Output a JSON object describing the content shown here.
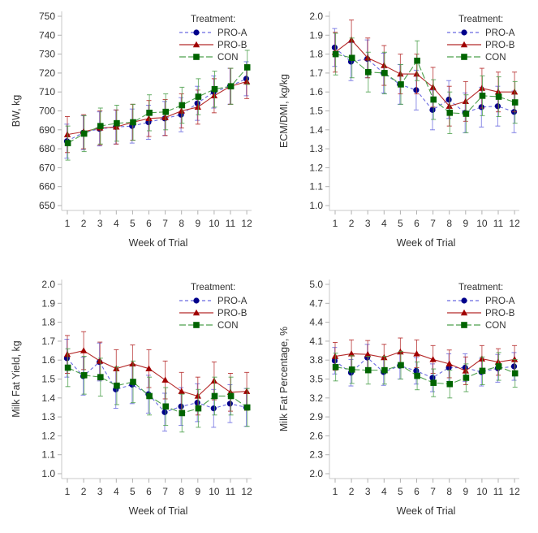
{
  "legend": {
    "title": "Treatment:",
    "entries": [
      {
        "name": "PRO-A",
        "color": "#00008B",
        "line_color": "#6B6BE0",
        "marker": "circle",
        "dash": "dashed"
      },
      {
        "name": "PRO-B",
        "color": "#A00000",
        "line_color": "#B52A2A",
        "marker": "triangle",
        "dash": "solid"
      },
      {
        "name": "CON",
        "color": "#006400",
        "line_color": "#4CA04C",
        "marker": "square",
        "dash": "longdash"
      }
    ]
  },
  "chart_data": [
    {
      "id": "bw",
      "type": "line",
      "title": "",
      "xlabel": "Week of Trial",
      "ylabel": "BW, kg",
      "x": [
        1,
        2,
        3,
        4,
        5,
        6,
        7,
        8,
        9,
        10,
        11,
        12
      ],
      "xticks": [
        "1",
        "2",
        "3",
        "4",
        "5",
        "6",
        "7",
        "8",
        "9",
        "10",
        "11",
        "12"
      ],
      "ylim": [
        650,
        750
      ],
      "yticks": [
        "650",
        "660",
        "670",
        "680",
        "690",
        "700",
        "710",
        "720",
        "730",
        "740",
        "750"
      ],
      "ytick_values": [
        650,
        660,
        670,
        680,
        690,
        700,
        710,
        720,
        730,
        740,
        750
      ],
      "legend_position": "top-right",
      "grid": false,
      "series": [
        {
          "name": "PRO-A",
          "values": [
            684,
            688.5,
            690.5,
            691.5,
            692,
            694,
            696,
            698,
            704,
            710,
            713,
            717
          ],
          "err": [
            9,
            9,
            9,
            9,
            9,
            9,
            9,
            9,
            9,
            8.5,
            9.5,
            9
          ]
        },
        {
          "name": "PRO-B",
          "values": [
            687.5,
            689,
            691,
            691.5,
            694,
            696,
            696.5,
            700,
            702,
            708,
            713,
            715.5
          ],
          "err": [
            9.5,
            9,
            9,
            9,
            9.5,
            9.5,
            9.5,
            9,
            9,
            9,
            9.5,
            9
          ]
        },
        {
          "name": "CON",
          "values": [
            683,
            688,
            692,
            693.5,
            694,
            699,
            699.5,
            703,
            707.5,
            711.5,
            713,
            723
          ],
          "err": [
            9,
            9.5,
            9.5,
            9.5,
            9.5,
            9.5,
            9.5,
            9.5,
            9.5,
            9.5,
            9.5,
            9
          ]
        }
      ]
    },
    {
      "id": "ecm-dmi",
      "type": "line",
      "title": "",
      "xlabel": "Week of Trial",
      "ylabel": "ECM/DMI, kg/kg",
      "x": [
        1,
        2,
        3,
        4,
        5,
        6,
        7,
        8,
        9,
        10,
        11,
        12
      ],
      "xticks": [
        "1",
        "2",
        "3",
        "4",
        "5",
        "6",
        "7",
        "8",
        "9",
        "10",
        "11",
        "12"
      ],
      "ylim": [
        1.0,
        2.0
      ],
      "yticks": [
        "1.0",
        "1.1",
        "1.2",
        "1.3",
        "1.4",
        "1.5",
        "1.6",
        "1.7",
        "1.8",
        "1.9",
        "2.0"
      ],
      "ytick_values": [
        1.0,
        1.1,
        1.2,
        1.3,
        1.4,
        1.5,
        1.6,
        1.7,
        1.8,
        1.9,
        2.0
      ],
      "legend_position": "top-right",
      "grid": false,
      "series": [
        {
          "name": "PRO-A",
          "values": [
            1.835,
            1.76,
            1.775,
            1.7,
            1.64,
            1.61,
            1.505,
            1.56,
            1.49,
            1.52,
            1.525,
            1.495
          ],
          "err": [
            0.1,
            0.1,
            0.1,
            0.105,
            0.105,
            0.105,
            0.105,
            0.1,
            0.105,
            0.105,
            0.105,
            0.11
          ]
        },
        {
          "name": "PRO-B",
          "values": [
            1.81,
            1.875,
            1.78,
            1.74,
            1.695,
            1.695,
            1.625,
            1.525,
            1.55,
            1.62,
            1.6,
            1.6
          ],
          "err": [
            0.105,
            0.105,
            0.105,
            0.105,
            0.105,
            0.105,
            0.105,
            0.105,
            0.105,
            0.105,
            0.105,
            0.105
          ]
        },
        {
          "name": "CON",
          "values": [
            1.8,
            1.78,
            1.705,
            1.7,
            1.64,
            1.765,
            1.56,
            1.49,
            1.485,
            1.58,
            1.575,
            1.545
          ],
          "err": [
            0.11,
            0.105,
            0.105,
            0.11,
            0.105,
            0.105,
            0.105,
            0.11,
            0.1,
            0.105,
            0.105,
            0.11
          ]
        }
      ]
    },
    {
      "id": "milk-fat-yield",
      "type": "line",
      "title": "",
      "xlabel": "Week of Trial",
      "ylabel": "Milk Fat Yield, kg",
      "x": [
        1,
        2,
        3,
        4,
        5,
        6,
        7,
        8,
        9,
        10,
        11,
        12
      ],
      "xticks": [
        "1",
        "2",
        "3",
        "4",
        "5",
        "6",
        "7",
        "8",
        "9",
        "10",
        "11",
        "12"
      ],
      "ylim": [
        1.0,
        2.0
      ],
      "yticks": [
        "1.0",
        "1.1",
        "1.2",
        "1.3",
        "1.4",
        "1.5",
        "1.6",
        "1.7",
        "1.8",
        "1.9",
        "2.0"
      ],
      "ytick_values": [
        1.0,
        1.1,
        1.2,
        1.3,
        1.4,
        1.5,
        1.6,
        1.7,
        1.8,
        1.9,
        2.0
      ],
      "legend_position": "top-right",
      "grid": false,
      "series": [
        {
          "name": "PRO-A",
          "values": [
            1.61,
            1.515,
            1.59,
            1.445,
            1.47,
            1.42,
            1.325,
            1.355,
            1.375,
            1.345,
            1.37,
            1.35
          ],
          "err": [
            0.1,
            0.1,
            0.1,
            0.1,
            0.1,
            0.1,
            0.1,
            0.1,
            0.1,
            0.1,
            0.1,
            0.1
          ]
        },
        {
          "name": "PRO-B",
          "values": [
            1.63,
            1.65,
            1.595,
            1.555,
            1.58,
            1.555,
            1.495,
            1.435,
            1.41,
            1.49,
            1.43,
            1.435
          ],
          "err": [
            0.1,
            0.1,
            0.1,
            0.1,
            0.1,
            0.1,
            0.1,
            0.1,
            0.1,
            0.1,
            0.1,
            0.1
          ]
        },
        {
          "name": "CON",
          "values": [
            1.56,
            1.52,
            1.51,
            1.465,
            1.485,
            1.41,
            1.355,
            1.32,
            1.345,
            1.41,
            1.41,
            1.35
          ],
          "err": [
            0.1,
            0.1,
            0.1,
            0.1,
            0.11,
            0.1,
            0.1,
            0.1,
            0.1,
            0.1,
            0.1,
            0.1
          ]
        }
      ]
    },
    {
      "id": "milk-fat-percentage",
      "type": "line",
      "title": "",
      "xlabel": "Week of Trial",
      "ylabel": "Milk Fat Percentage, %",
      "x": [
        1,
        2,
        3,
        4,
        5,
        6,
        7,
        8,
        9,
        10,
        11,
        12
      ],
      "xticks": [
        "1",
        "2",
        "3",
        "4",
        "5",
        "6",
        "7",
        "8",
        "9",
        "10",
        "11",
        "12"
      ],
      "ylim": [
        2.0,
        5.0
      ],
      "yticks": [
        "2.0",
        "2.3",
        "2.6",
        "2.9",
        "3.2",
        "3.5",
        "3.8",
        "4.1",
        "4.4",
        "4.7",
        "5.0"
      ],
      "ytick_values": [
        2.0,
        2.3,
        2.6,
        2.9,
        3.2,
        3.5,
        3.8,
        4.1,
        4.4,
        4.7,
        5.0
      ],
      "legend_position": "top-right",
      "grid": false,
      "series": [
        {
          "name": "PRO-A",
          "values": [
            3.79,
            3.6,
            3.84,
            3.61,
            3.71,
            3.63,
            3.52,
            3.68,
            3.68,
            3.61,
            3.67,
            3.7
          ],
          "err": [
            0.21,
            0.21,
            0.21,
            0.21,
            0.21,
            0.21,
            0.22,
            0.22,
            0.22,
            0.22,
            0.22,
            0.22
          ]
        },
        {
          "name": "PRO-B",
          "values": [
            3.86,
            3.9,
            3.89,
            3.84,
            3.93,
            3.9,
            3.81,
            3.74,
            3.63,
            3.82,
            3.77,
            3.81
          ],
          "err": [
            0.22,
            0.22,
            0.22,
            0.21,
            0.22,
            0.22,
            0.22,
            0.22,
            0.22,
            0.21,
            0.21,
            0.22
          ]
        },
        {
          "name": "CON",
          "values": [
            3.69,
            3.65,
            3.64,
            3.64,
            3.72,
            3.55,
            3.44,
            3.42,
            3.52,
            3.63,
            3.7,
            3.59
          ],
          "err": [
            0.22,
            0.22,
            0.22,
            0.22,
            0.22,
            0.22,
            0.22,
            0.22,
            0.22,
            0.22,
            0.22,
            0.22
          ]
        }
      ]
    }
  ]
}
